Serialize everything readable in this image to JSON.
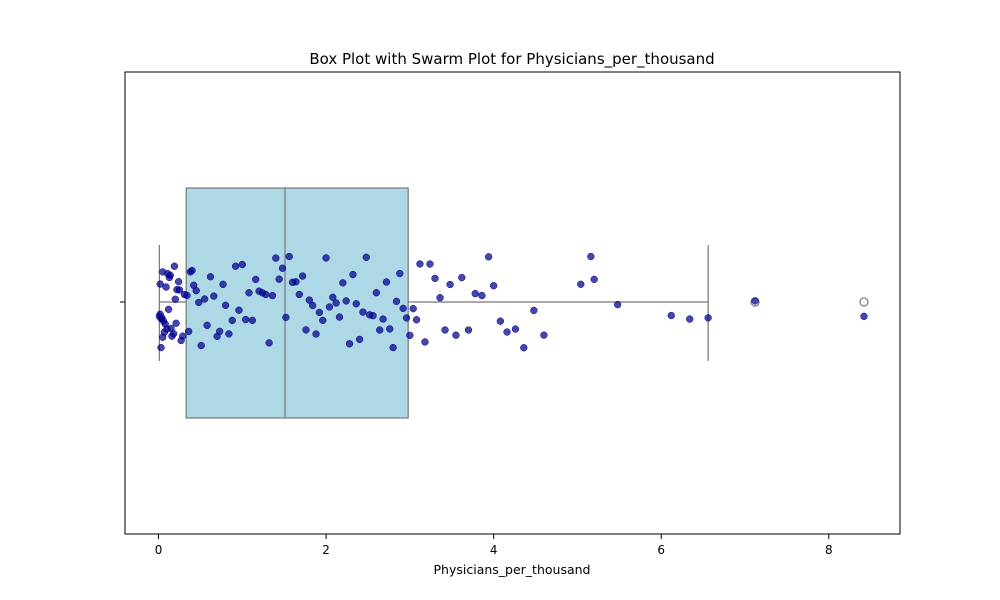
{
  "chart_data": {
    "type": "box",
    "title": "Box Plot with Swarm Plot for Physicians_per_thousand",
    "xlabel": "Physicians_per_thousand",
    "ylabel": "",
    "xlim": [
      -0.4,
      8.85
    ],
    "xticks": [
      0,
      2,
      4,
      6,
      8
    ],
    "xtick_labels": [
      "0",
      "2",
      "4",
      "6",
      "8"
    ],
    "grid": false,
    "box": {
      "min": 0.01,
      "q1": 0.33,
      "median": 1.51,
      "q3": 2.98,
      "whisker_high": 6.56,
      "outliers": [
        7.12,
        8.42
      ],
      "fill_color": "#add8e6",
      "edge_color": "#777777"
    },
    "points_color": "#00008b",
    "points": [
      0.01,
      0.02,
      0.02,
      0.03,
      0.03,
      0.04,
      0.05,
      0.05,
      0.06,
      0.07,
      0.08,
      0.09,
      0.1,
      0.11,
      0.12,
      0.13,
      0.14,
      0.15,
      0.16,
      0.18,
      0.19,
      0.2,
      0.21,
      0.22,
      0.24,
      0.25,
      0.27,
      0.29,
      0.31,
      0.34,
      0.36,
      0.38,
      0.4,
      0.42,
      0.45,
      0.48,
      0.51,
      0.55,
      0.58,
      0.62,
      0.66,
      0.7,
      0.73,
      0.77,
      0.8,
      0.84,
      0.88,
      0.92,
      0.96,
      1.0,
      1.04,
      1.08,
      1.12,
      1.16,
      1.2,
      1.24,
      1.28,
      1.32,
      1.36,
      1.4,
      1.44,
      1.48,
      1.52,
      1.56,
      1.6,
      1.64,
      1.68,
      1.72,
      1.76,
      1.8,
      1.84,
      1.88,
      1.92,
      1.96,
      2.0,
      2.04,
      2.08,
      2.12,
      2.16,
      2.2,
      2.24,
      2.28,
      2.32,
      2.36,
      2.4,
      2.44,
      2.48,
      2.52,
      2.56,
      2.6,
      2.64,
      2.68,
      2.72,
      2.76,
      2.8,
      2.84,
      2.88,
      2.92,
      2.96,
      3.0,
      3.04,
      3.08,
      3.12,
      3.18,
      3.24,
      3.3,
      3.36,
      3.42,
      3.48,
      3.55,
      3.62,
      3.7,
      3.78,
      3.86,
      3.94,
      4.0,
      4.08,
      4.16,
      4.26,
      4.36,
      4.48,
      4.6,
      5.04,
      5.16,
      5.2,
      5.48,
      6.12,
      6.34,
      6.56,
      7.12,
      8.42
    ]
  }
}
